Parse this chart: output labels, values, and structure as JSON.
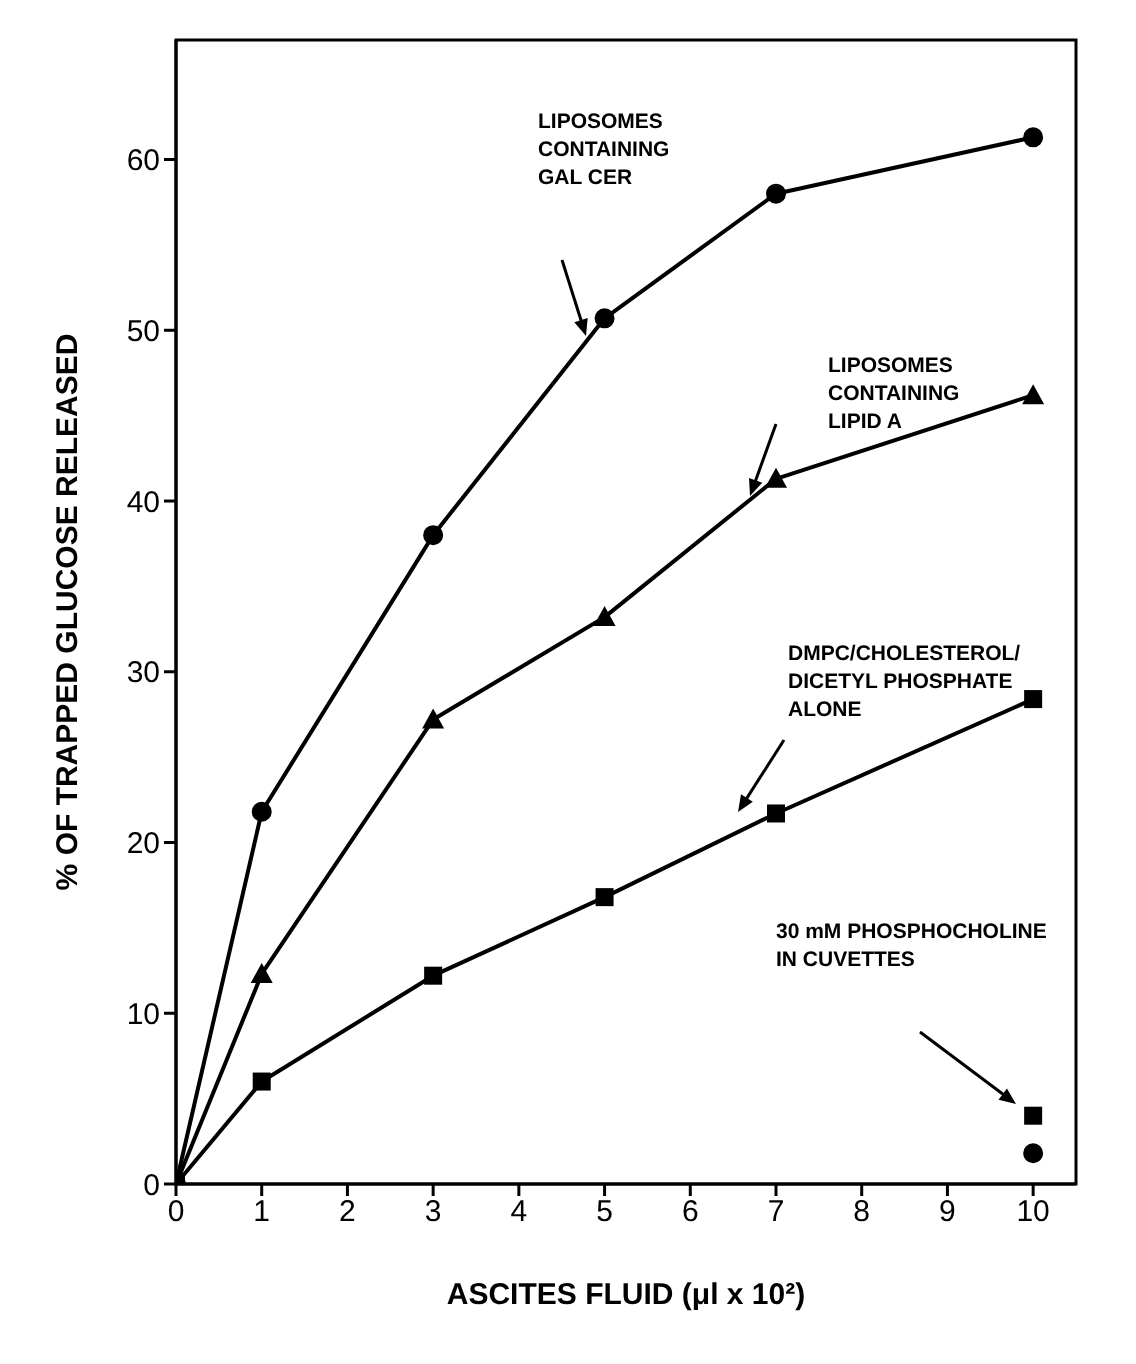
{
  "chart_data": {
    "type": "line",
    "xlabel": "ASCITES FLUID  (μl x 10²)",
    "ylabel": "% OF TRAPPED GLUCOSE RELEASED",
    "x": [
      0,
      1,
      3,
      5,
      7,
      10
    ],
    "series": [
      {
        "color": "#000000",
        "marker": "circle",
        "values": [
          0,
          21.8,
          38,
          50.7,
          58,
          61.3
        ]
      },
      {
        "color": "#000000",
        "marker": "square",
        "values": [
          0,
          6,
          12.2,
          16.8,
          21.7,
          28.4
        ]
      },
      {
        "color": "#000000",
        "marker": "triangle",
        "values": [
          0,
          12.3,
          27.2,
          33.2,
          41.3,
          46.2
        ]
      },
      {
        "type": "scatter",
        "color": "#000000",
        "marker": "square",
        "x": [
          10
        ],
        "values": [
          4
        ]
      },
      {
        "type": "scatter",
        "color": "#000000",
        "marker": "circle",
        "x": [
          10
        ],
        "values": [
          1.8
        ]
      }
    ],
    "xlim": [
      0,
      10.5
    ],
    "ylim": [
      0,
      67
    ],
    "xticks": [
      0,
      1,
      2,
      3,
      4,
      5,
      6,
      7,
      8,
      9,
      10
    ],
    "yticks": [
      0,
      10,
      20,
      30,
      40,
      50,
      60
    ],
    "grid": false,
    "legend": false,
    "line_style": "solid",
    "annotations": [
      "LIPOSOMES\nCONTAINING\nGAL CER",
      "LIPOSOMES\nCONTAINING\nLIPID A",
      "DMPC/CHOLESTEROL/\nDICETYL PHOSPHATE\nALONE",
      "30 mM PHOSPHOCHOLINE\nIN CUVETTES"
    ]
  }
}
